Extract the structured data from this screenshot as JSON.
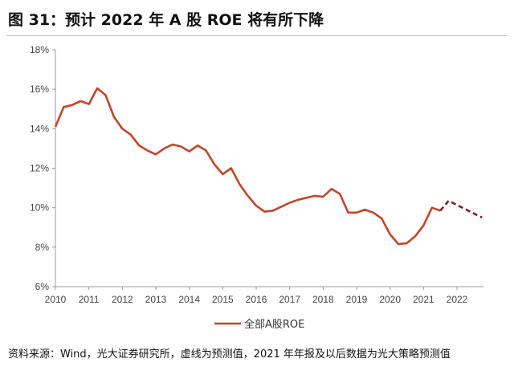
{
  "title": "图 31：预计 2022 年 A 股 ROE 将有所下降",
  "source": "资料来源：Wind，光大证券研究所，虚线为预测值，2021 年年报及以后数据为光大策略预测值",
  "chart_data": {
    "type": "line",
    "title": "",
    "xlabel": "",
    "ylabel": "",
    "xlim": [
      2010,
      2022.8
    ],
    "ylim": [
      6,
      18
    ],
    "yticks": [
      "6%",
      "8%",
      "10%",
      "12%",
      "14%",
      "16%",
      "18%"
    ],
    "ytick_values": [
      6,
      8,
      10,
      12,
      14,
      16,
      18
    ],
    "xticks": [
      "2010",
      "2011",
      "2012",
      "2013",
      "2014",
      "2015",
      "2016",
      "2017",
      "2018",
      "2019",
      "2020",
      "2021",
      "2022"
    ],
    "grid": false,
    "legend": "bottom",
    "series": [
      {
        "name": "全部A股ROE",
        "color": "#C0462A",
        "style": "solid",
        "x_start": 2010,
        "x_step": 0.25,
        "values": [
          14.1,
          15.1,
          15.2,
          15.4,
          15.25,
          16.05,
          15.7,
          14.6,
          14.0,
          13.7,
          13.15,
          12.9,
          12.7,
          13.0,
          13.2,
          13.1,
          12.85,
          13.15,
          12.9,
          12.2,
          11.7,
          12.0,
          11.2,
          10.6,
          10.1,
          9.8,
          9.85,
          10.05,
          10.25,
          10.4,
          10.5,
          10.6,
          10.55,
          10.95,
          10.7,
          9.75,
          9.75,
          9.9,
          9.75,
          9.45,
          8.65,
          8.15,
          8.2,
          8.55,
          9.1,
          10.0,
          9.85
        ]
      },
      {
        "style": "dashed",
        "color": "#8B1A1A",
        "x": [
          2021.5,
          2021.75,
          2022.75
        ],
        "values": [
          9.85,
          10.35,
          9.5
        ]
      }
    ]
  }
}
